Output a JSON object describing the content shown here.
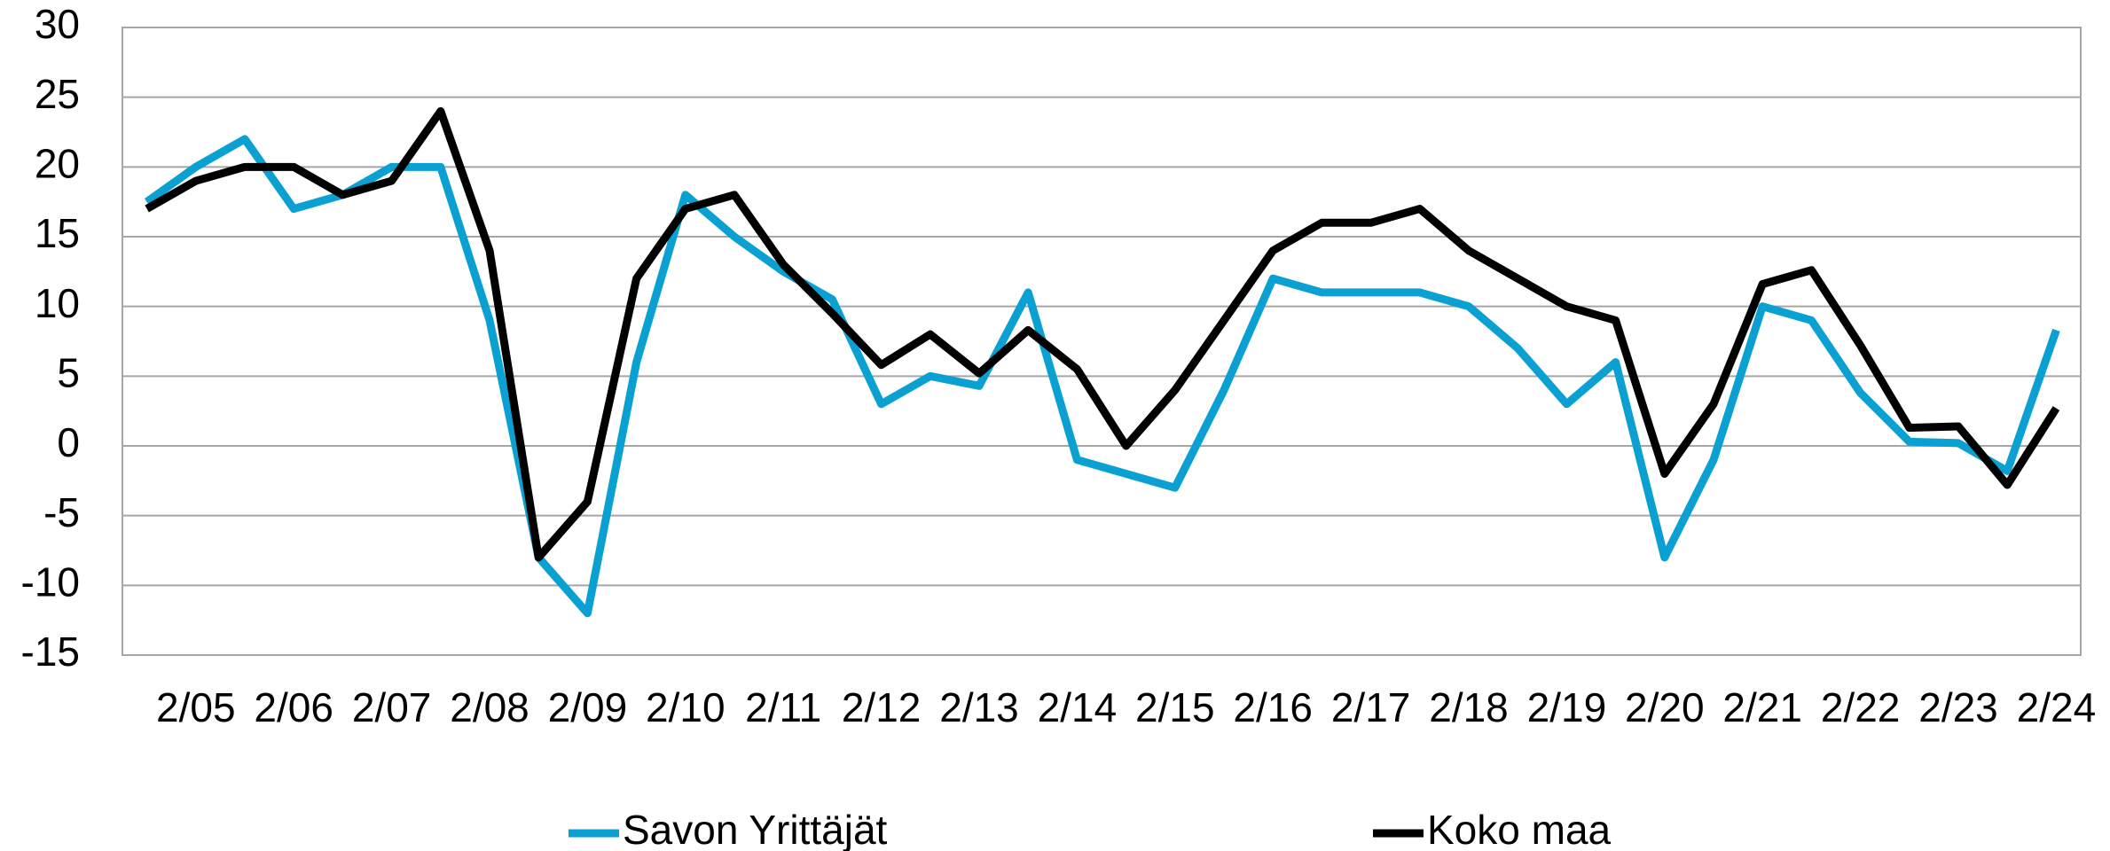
{
  "chart_data": {
    "type": "line",
    "categories": [
      null,
      "2/05",
      null,
      "2/06",
      null,
      "2/07",
      null,
      "2/08",
      null,
      "2/09",
      null,
      "2/10",
      null,
      "2/11",
      null,
      "2/12",
      null,
      "2/13",
      null,
      "2/14",
      null,
      "2/15",
      null,
      "2/16",
      null,
      "2/17",
      null,
      "2/18",
      null,
      "2/19",
      null,
      "2/20",
      null,
      "2/21",
      null,
      "2/22",
      null,
      "2/23",
      null,
      "2/24"
    ],
    "series": [
      {
        "name": "Savon Yrittäjät",
        "color": "#0aa0d2",
        "values": [
          17.5,
          20,
          22,
          17,
          18,
          20,
          20,
          9,
          -8,
          -12,
          6,
          18,
          15,
          12.5,
          10.5,
          3,
          5,
          4.3,
          11,
          -1,
          -2,
          -3,
          4,
          12,
          11,
          11,
          11,
          10,
          7,
          3,
          6,
          -8,
          -1,
          10,
          9,
          3.8,
          0.3,
          0.2,
          -1.8,
          8.3
        ]
      },
      {
        "name": "Koko maa",
        "color": "#000000",
        "values": [
          17,
          19,
          20,
          20,
          18,
          19,
          24,
          14,
          -8,
          -4,
          12,
          17,
          18,
          13,
          9.5,
          5.8,
          8,
          5.2,
          8.3,
          5.5,
          0,
          4,
          9,
          14,
          16,
          16,
          17,
          14,
          12,
          10,
          9,
          -2,
          3,
          11.6,
          12.6,
          7.2,
          1.3,
          1.4,
          -2.8,
          2.7
        ]
      }
    ],
    "ylim": [
      -15,
      30
    ],
    "yticks": [
      -15,
      -10,
      -5,
      0,
      5,
      10,
      15,
      20,
      25,
      30
    ],
    "grid": true,
    "legend": "bottom"
  }
}
